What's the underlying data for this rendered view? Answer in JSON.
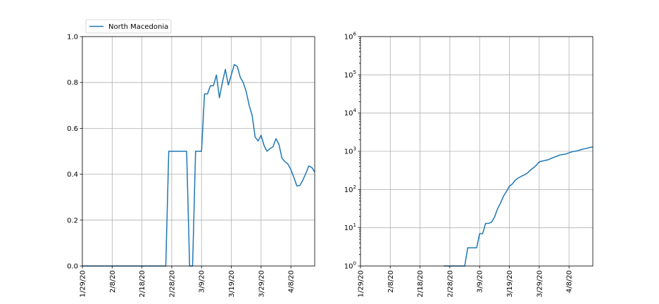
{
  "chart_data": [
    {
      "type": "line",
      "legend": {
        "entries": [
          "North Macedonia"
        ],
        "placement": "top-left"
      },
      "x_tick_labels": [
        "1/29/20",
        "2/8/20",
        "2/18/20",
        "2/28/20",
        "3/9/20",
        "3/19/20",
        "3/29/20",
        "4/8/20"
      ],
      "x_tick_dates": [
        "2020-01-29",
        "2020-02-08",
        "2020-02-18",
        "2020-02-28",
        "2020-03-09",
        "2020-03-19",
        "2020-03-29",
        "2020-04-08"
      ],
      "xlim": [
        "2020-01-29",
        "2020-04-16"
      ],
      "ylim": [
        0,
        1
      ],
      "y_ticks": [
        0.0,
        0.2,
        0.4,
        0.6,
        0.8,
        1.0
      ],
      "y_tick_labels": [
        "0.0",
        "0.2",
        "0.4",
        "0.6",
        "0.8",
        "1.0"
      ],
      "grid": true,
      "series": [
        {
          "name": "North Macedonia",
          "color": "#1f77b4",
          "x": [
            "2020-01-29",
            "2020-02-18",
            "2020-02-26",
            "2020-02-27",
            "2020-03-04",
            "2020-03-05",
            "2020-03-06",
            "2020-03-07",
            "2020-03-08",
            "2020-03-09",
            "2020-03-10",
            "2020-03-11",
            "2020-03-12",
            "2020-03-13",
            "2020-03-14",
            "2020-03-15",
            "2020-03-16",
            "2020-03-17",
            "2020-03-18",
            "2020-03-19",
            "2020-03-20",
            "2020-03-21",
            "2020-03-22",
            "2020-03-23",
            "2020-03-24",
            "2020-03-25",
            "2020-03-26",
            "2020-03-27",
            "2020-03-28",
            "2020-03-29",
            "2020-03-30",
            "2020-03-31",
            "2020-04-01",
            "2020-04-02",
            "2020-04-03",
            "2020-04-04",
            "2020-04-05",
            "2020-04-06",
            "2020-04-07",
            "2020-04-08",
            "2020-04-09",
            "2020-04-10",
            "2020-04-11",
            "2020-04-12",
            "2020-04-13",
            "2020-04-14",
            "2020-04-15",
            "2020-04-16"
          ],
          "y": [
            0.0,
            0.0,
            0.0,
            0.5,
            0.5,
            0.0,
            0.0,
            0.5,
            0.5,
            0.5,
            0.75,
            0.75,
            0.786,
            0.786,
            0.833,
            0.733,
            0.8,
            0.857,
            0.789,
            0.833,
            0.878,
            0.87,
            0.823,
            0.8,
            0.76,
            0.7,
            0.656,
            0.562,
            0.545,
            0.57,
            0.525,
            0.5,
            0.512,
            0.52,
            0.555,
            0.53,
            0.47,
            0.455,
            0.445,
            0.42,
            0.387,
            0.349,
            0.351,
            0.374,
            0.403,
            0.436,
            0.43,
            0.41
          ]
        }
      ]
    },
    {
      "type": "line",
      "x_tick_labels": [
        "1/29/20",
        "2/8/20",
        "2/18/20",
        "2/28/20",
        "3/9/20",
        "3/19/20",
        "3/29/20",
        "4/8/20"
      ],
      "x_tick_dates": [
        "2020-01-29",
        "2020-02-08",
        "2020-02-18",
        "2020-02-28",
        "2020-03-09",
        "2020-03-19",
        "2020-03-29",
        "2020-04-08"
      ],
      "xlim": [
        "2020-01-29",
        "2020-04-16"
      ],
      "yscale": "log",
      "ylim": [
        1,
        1000000
      ],
      "y_tick_labels": [
        {
          "base": "10",
          "exp": "0"
        },
        {
          "base": "10",
          "exp": "1"
        },
        {
          "base": "10",
          "exp": "2"
        },
        {
          "base": "10",
          "exp": "3"
        },
        {
          "base": "10",
          "exp": "4"
        },
        {
          "base": "10",
          "exp": "5"
        },
        {
          "base": "10",
          "exp": "6"
        }
      ],
      "grid": true,
      "series": [
        {
          "color": "#1f77b4",
          "x": [
            "2020-02-26",
            "2020-03-04",
            "2020-03-05",
            "2020-03-06",
            "2020-03-07",
            "2020-03-08",
            "2020-03-09",
            "2020-03-10",
            "2020-03-11",
            "2020-03-12",
            "2020-03-13",
            "2020-03-14",
            "2020-03-15",
            "2020-03-16",
            "2020-03-17",
            "2020-03-18",
            "2020-03-19",
            "2020-03-20",
            "2020-03-21",
            "2020-03-22",
            "2020-03-23",
            "2020-03-24",
            "2020-03-25",
            "2020-03-26",
            "2020-03-27",
            "2020-03-28",
            "2020-03-29",
            "2020-03-30",
            "2020-03-31",
            "2020-04-01",
            "2020-04-02",
            "2020-04-03",
            "2020-04-04",
            "2020-04-05",
            "2020-04-06",
            "2020-04-07",
            "2020-04-08",
            "2020-04-09",
            "2020-04-10",
            "2020-04-11",
            "2020-04-12",
            "2020-04-13",
            "2020-04-14",
            "2020-04-15",
            "2020-04-16"
          ],
          "y": [
            1,
            1,
            3,
            3,
            3,
            3,
            7,
            7,
            13,
            13,
            14,
            19,
            31,
            44,
            67,
            88,
            122,
            140,
            177,
            201,
            222,
            241,
            267,
            320,
            367,
            430,
            529,
            556,
            577,
            601,
            651,
            699,
            747,
            803,
            827,
            849,
            911,
            972,
            1000,
            1040,
            1100,
            1150,
            1200,
            1260,
            1300
          ]
        }
      ]
    }
  ]
}
